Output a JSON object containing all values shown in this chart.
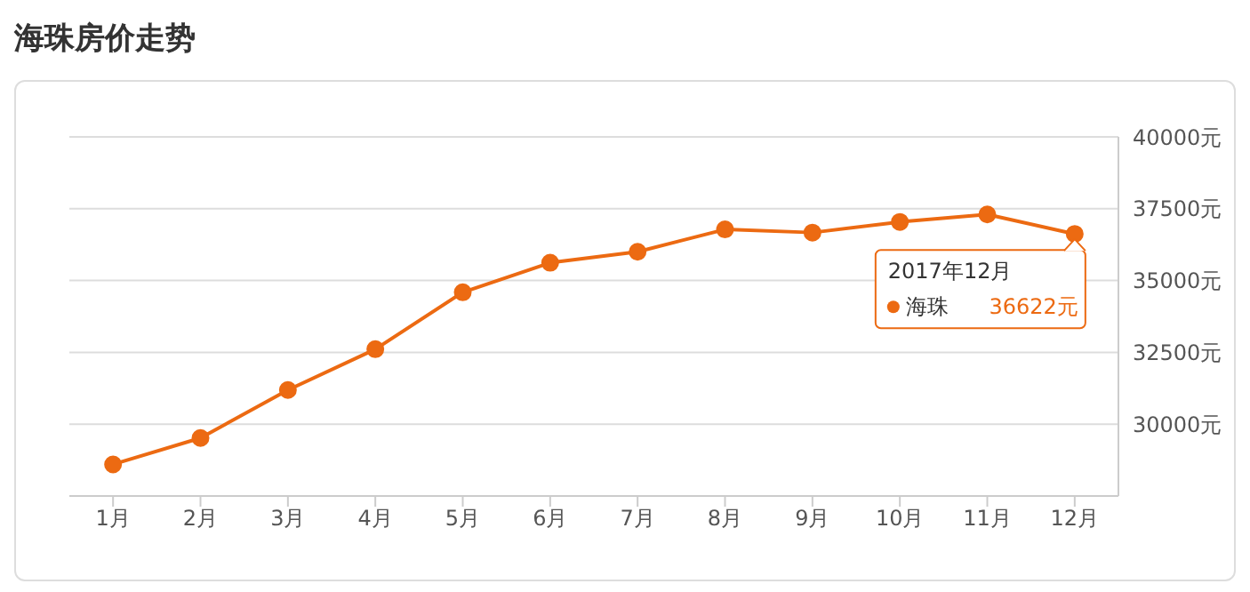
{
  "chart_data": {
    "type": "line",
    "title": "海珠房价走势",
    "categories": [
      "1月",
      "2月",
      "3月",
      "4月",
      "5月",
      "6月",
      "7月",
      "8月",
      "9月",
      "10月",
      "11月",
      "12月"
    ],
    "series": [
      {
        "name": "海珠",
        "color": "#ec6a12",
        "values": [
          28600,
          29520,
          31190,
          32610,
          34590,
          35620,
          36000,
          36780,
          36670,
          37040,
          37300,
          36622
        ],
        "value_labels": [
          null,
          null,
          null,
          null,
          null,
          null,
          null,
          null,
          null,
          null,
          null,
          "36622元"
        ]
      }
    ],
    "ylim": [
      27500,
      40000
    ],
    "yticks": [
      {
        "value": 30000,
        "label": "30000元"
      },
      {
        "value": 32500,
        "label": "32500元"
      },
      {
        "value": 35000,
        "label": "35000元"
      },
      {
        "value": 37500,
        "label": "37500元"
      },
      {
        "value": 40000,
        "label": "40000元"
      }
    ],
    "grid": "y",
    "marker": "circle",
    "line_style": "solid",
    "annotations": [
      "2017年12月"
    ]
  }
}
